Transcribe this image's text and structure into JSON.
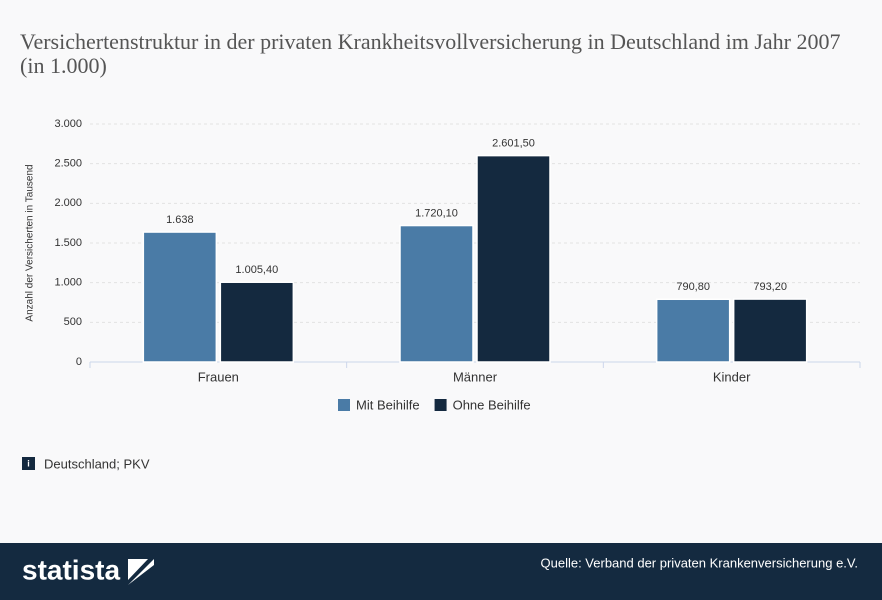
{
  "chart_data": {
    "type": "bar",
    "title": "Versichertenstruktur in der privaten Krankheitsvollversicherung in Deutschland im Jahr 2007 (in 1.000)",
    "ylabel": "Anzahl der Versicherten in Tausend",
    "categories": [
      "Frauen",
      "Männer",
      "Kinder"
    ],
    "series": [
      {
        "name": "Mit Beihilfe",
        "color": "#4a7ba6",
        "values": [
          1638,
          1720.1,
          790.8
        ],
        "value_labels": [
          "1.638",
          "1.720,10",
          "790,80"
        ]
      },
      {
        "name": "Ohne Beihilfe",
        "color": "#14293f",
        "values": [
          1005.4,
          2601.5,
          793.2
        ],
        "value_labels": [
          "1.005,40",
          "2.601,50",
          "793,20"
        ]
      }
    ],
    "ylim": [
      0,
      3000
    ],
    "yticks": [
      0,
      500,
      {
        "value": 1000,
        "label": "1.000"
      },
      {
        "value": 1500,
        "label": "1.500"
      },
      {
        "value": 2000,
        "label": "2.000"
      },
      {
        "value": 2500,
        "label": "2.500"
      },
      {
        "value": 3000,
        "label": "3.000"
      }
    ],
    "grid": true,
    "legend": "bottom",
    "note": "Deutschland; PKV",
    "source": "Quelle: Verband der privaten Krankenversicherung e.V."
  },
  "footer": {
    "brand": "statista"
  }
}
